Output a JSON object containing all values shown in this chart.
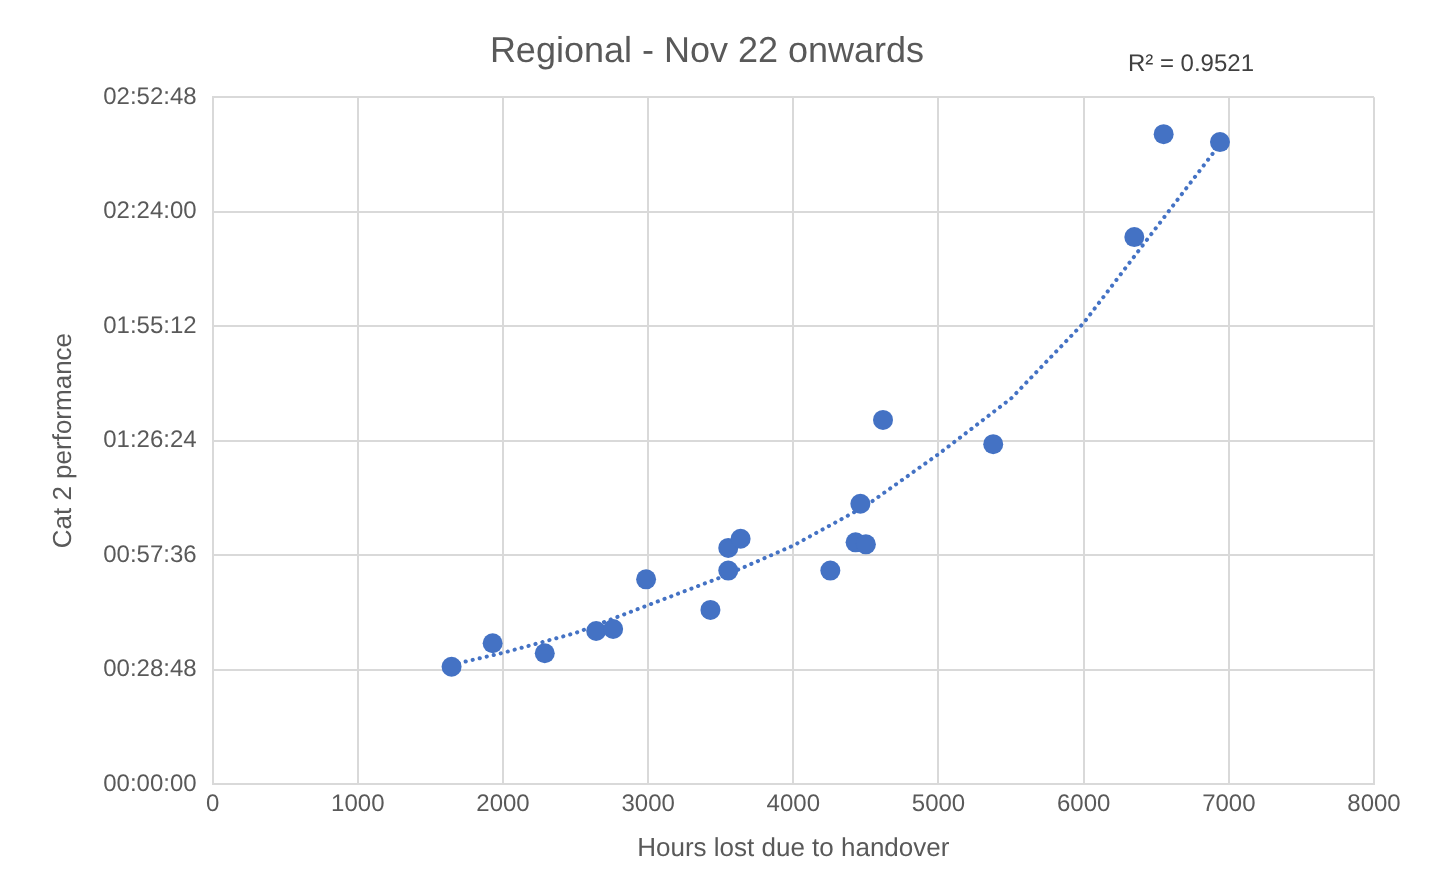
{
  "chart_data": {
    "type": "scatter",
    "title": "Regional - Nov 22 onwards",
    "xlabel": "Hours lost due to handover",
    "ylabel": "Cat 2 performance",
    "annotations": [
      "R² = 0.9521"
    ],
    "xlim": [
      0,
      8000
    ],
    "xticks": [
      0,
      1000,
      2000,
      3000,
      4000,
      5000,
      6000,
      7000,
      8000
    ],
    "ylim": [
      0,
      172.8
    ],
    "yticks": [
      {
        "value": 0,
        "label": "00:00:00"
      },
      {
        "value": 28.8,
        "label": "00:28:48"
      },
      {
        "value": 57.6,
        "label": "00:57:36"
      },
      {
        "value": 86.4,
        "label": "01:26:24"
      },
      {
        "value": 115.2,
        "label": "01:55:12"
      },
      {
        "value": 144,
        "label": "02:24:00"
      },
      {
        "value": 172.8,
        "label": "02:52:48"
      }
    ],
    "grid": true,
    "legend": false,
    "series": [
      {
        "type": "scatter",
        "color": "#4472c4",
        "marker": "circle",
        "x": [
          1646,
          1929,
          2288,
          2642,
          2759,
          2986,
          3429,
          3552,
          3552,
          3637,
          4255,
          4429,
          4500,
          4462,
          4618,
          5377,
          6349,
          6551,
          6939
        ],
        "values": [
          29.5,
          35.4,
          32.9,
          38.5,
          39.0,
          51.5,
          43.8,
          53.7,
          59.4,
          61.7,
          53.7,
          60.8,
          60.3,
          70.5,
          91.6,
          85.5,
          137.6,
          163.5,
          161.5
        ]
      },
      {
        "type": "line",
        "color": "#4472c4",
        "marker": "none",
        "line_style": "dotted",
        "x": [
          1646,
          2000,
          2500,
          3000,
          3500,
          4000,
          4500,
          5000,
          5500,
          6000,
          6500,
          6939
        ],
        "values": [
          30,
          33,
          38,
          45,
          52,
          60,
          70,
          83,
          97,
          116,
          140,
          161
        ]
      }
    ]
  }
}
